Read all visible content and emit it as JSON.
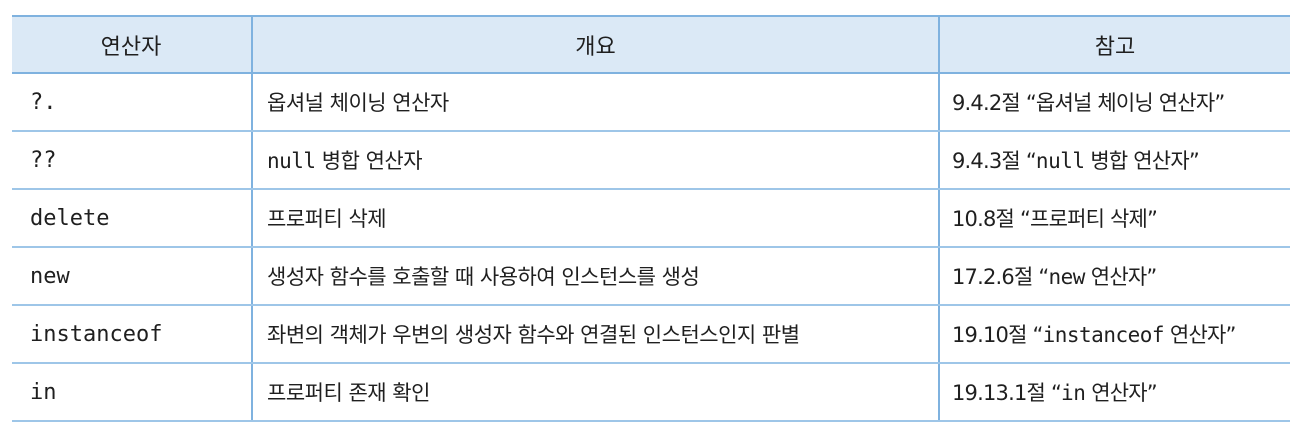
{
  "table": {
    "headers": [
      "연산자",
      "개요",
      "참고"
    ],
    "rows": [
      {
        "operator": "?.",
        "summary": "옵셔널 체이닝 연산자",
        "ref_section": "9.4.2절",
        "ref_open": " “",
        "ref_code": "",
        "ref_text": "옵셔널 체이닝 연산자",
        "ref_close": "”"
      },
      {
        "operator": "??",
        "summary_code": "null",
        "summary": " 병합 연산자",
        "ref_section": "9.4.3절",
        "ref_open": " “",
        "ref_code": "null",
        "ref_text": " 병합 연산자",
        "ref_close": "”"
      },
      {
        "operator": "delete",
        "summary": "프로퍼티 삭제",
        "ref_section": "10.8절",
        "ref_open": " “",
        "ref_code": "",
        "ref_text": "프로퍼티 삭제",
        "ref_close": "”"
      },
      {
        "operator": "new",
        "summary": "생성자 함수를 호출할 때 사용하여 인스턴스를 생성",
        "ref_section": "17.2.6절",
        "ref_open": " “",
        "ref_code": "new",
        "ref_text": " 연산자",
        "ref_close": "”"
      },
      {
        "operator": "instanceof",
        "summary": "좌변의 객체가 우변의 생성자 함수와 연결된 인스턴스인지 판별",
        "ref_section": "19.10절",
        "ref_open": " “",
        "ref_code": "instanceof",
        "ref_text": " 연산자",
        "ref_close": "”"
      },
      {
        "operator": "in",
        "summary": "프로퍼티 존재 확인",
        "ref_section": "19.13.1절",
        "ref_open": " “",
        "ref_code": "in",
        "ref_text": " 연산자",
        "ref_close": "”"
      }
    ]
  }
}
